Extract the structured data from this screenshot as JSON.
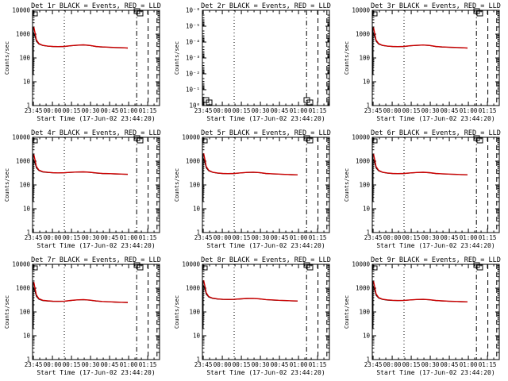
{
  "figure": {
    "background": "#ffffff",
    "axis_color": "#000000",
    "events_color": "#000000",
    "lld_color": "#cc0000"
  },
  "x_ticks": [
    "23:45",
    "00:00",
    "00:15",
    "00:30",
    "00:45",
    "01:00",
    "01:15"
  ],
  "chart_data": [
    {
      "type": "line",
      "title": "Det 1r BLACK = Events, RED = LLD",
      "ylabel": "Counts/sec",
      "xlabel": "Start Time (17-Jun-02 23:44:20)",
      "yscale": "log",
      "ylim": [
        1,
        10000
      ],
      "yticks": [
        "1",
        "10",
        "100",
        "1000",
        "10000"
      ],
      "xlim_minutes": [
        0,
        100
      ],
      "marker_minutes": [
        25,
        82,
        91,
        98
      ],
      "series": [
        {
          "name": "Events",
          "minutes": [
            0.6,
            1,
            2,
            3,
            5,
            8,
            12,
            16,
            20,
            25,
            30,
            35,
            40,
            45,
            50,
            55,
            60,
            65,
            70,
            75
          ],
          "values": [
            900,
            1100,
            800,
            500,
            380,
            330,
            310,
            300,
            295,
            300,
            320,
            340,
            350,
            330,
            300,
            285,
            280,
            270,
            265,
            260
          ]
        },
        {
          "name": "LLD",
          "minutes": [
            0.6,
            1,
            2,
            3,
            5,
            8,
            12,
            16,
            20,
            25,
            30,
            35,
            40,
            45,
            50,
            55,
            60,
            65,
            70,
            75
          ],
          "values": [
            1600,
            2000,
            1100,
            580,
            400,
            340,
            315,
            305,
            300,
            305,
            325,
            345,
            355,
            335,
            305,
            290,
            285,
            275,
            270,
            262
          ]
        }
      ],
      "annotations": [
        {
          "label": "box",
          "at": "top-right near 01:05"
        }
      ]
    },
    {
      "type": "line",
      "title": "Det 2r BLACK = Events, RED = LLD",
      "ylabel": "Counts/sec",
      "xlabel": "Start Time (17-Jun-02 23:44:20)",
      "yscale": "log",
      "ylim": [
        1,
        1e-06
      ],
      "yticks": [
        "10⁰",
        "10⁻¹",
        "10⁻²",
        "10⁻³",
        "10⁻⁴",
        "10⁻⁵",
        "10⁻⁶"
      ],
      "xlim_minutes": [
        0,
        100
      ],
      "marker_minutes": [
        25,
        82,
        91,
        98
      ],
      "series": [
        {
          "name": "Events",
          "minutes": [],
          "values": []
        },
        {
          "name": "LLD",
          "minutes": [],
          "values": []
        }
      ],
      "annotations": [
        {
          "label": "box",
          "at": "bottom-left"
        },
        {
          "label": "box",
          "at": "bottom-right near 01:05"
        }
      ]
    },
    {
      "type": "line",
      "title": "Det 3r BLACK = Events, RED = LLD",
      "ylabel": "Counts/sec",
      "xlabel": "Start Time (17-Jun-02 23:44:20)",
      "yscale": "log",
      "ylim": [
        1,
        10000
      ],
      "yticks": [
        "1",
        "10",
        "100",
        "1000",
        "10000"
      ],
      "xlim_minutes": [
        0,
        100
      ],
      "marker_minutes": [
        25,
        82,
        91,
        98
      ],
      "series": [
        {
          "name": "Events",
          "minutes": [
            0.6,
            1,
            2,
            3,
            5,
            8,
            12,
            16,
            20,
            25,
            30,
            35,
            40,
            45,
            50,
            55,
            60,
            65,
            70,
            75
          ],
          "values": [
            900,
            1100,
            780,
            500,
            380,
            330,
            310,
            300,
            295,
            300,
            320,
            335,
            345,
            330,
            300,
            285,
            280,
            272,
            266,
            260
          ]
        },
        {
          "name": "LLD",
          "minutes": [
            0.6,
            1,
            2,
            3,
            5,
            8,
            12,
            16,
            20,
            25,
            30,
            35,
            40,
            45,
            50,
            55,
            60,
            65,
            70,
            75
          ],
          "values": [
            1500,
            1900,
            1000,
            560,
            400,
            340,
            315,
            305,
            300,
            305,
            325,
            340,
            350,
            335,
            305,
            290,
            285,
            277,
            270,
            262
          ]
        }
      ],
      "annotations": [
        {
          "label": "box",
          "at": "top-right near 01:05"
        }
      ]
    },
    {
      "type": "line",
      "title": "Det 4r BLACK = Events, RED = LLD",
      "ylabel": "Counts/sec",
      "xlabel": "Start Time (17-Jun-02 23:44:20)",
      "yscale": "log",
      "ylim": [
        1,
        10000
      ],
      "yticks": [
        "1",
        "10",
        "100",
        "1000",
        "10000"
      ],
      "xlim_minutes": [
        0,
        100
      ],
      "marker_minutes": [
        25,
        82,
        91,
        98
      ],
      "series": [
        {
          "name": "Events",
          "minutes": [
            0.6,
            1,
            2,
            3,
            5,
            8,
            12,
            16,
            20,
            25,
            30,
            35,
            40,
            45,
            50,
            55,
            60,
            65,
            70,
            75
          ],
          "values": [
            900,
            1100,
            800,
            520,
            400,
            350,
            330,
            320,
            318,
            320,
            335,
            345,
            350,
            338,
            315,
            300,
            295,
            288,
            282,
            278
          ]
        },
        {
          "name": "LLD",
          "minutes": [
            0.6,
            1,
            2,
            3,
            5,
            8,
            12,
            16,
            20,
            25,
            30,
            35,
            40,
            45,
            50,
            55,
            60,
            65,
            70,
            75
          ],
          "values": [
            1500,
            1900,
            1100,
            600,
            420,
            360,
            338,
            325,
            322,
            325,
            340,
            350,
            355,
            342,
            320,
            305,
            300,
            292,
            286,
            280
          ]
        }
      ],
      "annotations": [
        {
          "label": "box",
          "at": "top-right near 01:05"
        }
      ]
    },
    {
      "type": "line",
      "title": "Det 5r BLACK = Events, RED = LLD",
      "ylabel": "Counts/sec",
      "xlabel": "Start Time (17-Jun-02 23:44:20)",
      "yscale": "log",
      "ylim": [
        1,
        10000
      ],
      "yticks": [
        "1",
        "10",
        "100",
        "1000",
        "10000"
      ],
      "xlim_minutes": [
        0,
        100
      ],
      "marker_minutes": [
        25,
        82,
        91,
        98
      ],
      "series": [
        {
          "name": "Events",
          "minutes": [
            0.6,
            1,
            2,
            3,
            5,
            8,
            12,
            16,
            20,
            25,
            30,
            35,
            40,
            45,
            50,
            55,
            60,
            65,
            70,
            75
          ],
          "values": [
            1000,
            1300,
            850,
            520,
            390,
            335,
            310,
            300,
            295,
            300,
            318,
            332,
            340,
            325,
            300,
            290,
            282,
            275,
            268,
            262
          ]
        },
        {
          "name": "LLD",
          "minutes": [
            0.6,
            1,
            2,
            3,
            5,
            8,
            12,
            16,
            20,
            25,
            30,
            35,
            40,
            45,
            50,
            55,
            60,
            65,
            70,
            75
          ],
          "values": [
            1700,
            2100,
            1150,
            600,
            410,
            345,
            318,
            305,
            300,
            305,
            322,
            336,
            345,
            330,
            305,
            294,
            286,
            278,
            272,
            265
          ]
        }
      ],
      "annotations": [
        {
          "label": "box",
          "at": "top-right near 01:05"
        }
      ]
    },
    {
      "type": "line",
      "title": "Det 6r BLACK = Events, RED = LLD",
      "ylabel": "Counts/sec",
      "xlabel": "Start Time (17-Jun-02 23:44:20)",
      "yscale": "log",
      "ylim": [
        1,
        10000
      ],
      "yticks": [
        "1",
        "10",
        "100",
        "1000",
        "10000"
      ],
      "xlim_minutes": [
        0,
        100
      ],
      "marker_minutes": [
        25,
        82,
        91,
        98
      ],
      "series": [
        {
          "name": "Events",
          "minutes": [
            0.6,
            1,
            2,
            3,
            5,
            8,
            12,
            16,
            20,
            25,
            30,
            35,
            40,
            45,
            50,
            55,
            60,
            65,
            70,
            75
          ],
          "values": [
            950,
            1200,
            820,
            510,
            390,
            335,
            310,
            300,
            296,
            300,
            316,
            330,
            338,
            324,
            300,
            290,
            282,
            276,
            270,
            265
          ]
        },
        {
          "name": "LLD",
          "minutes": [
            0.6,
            1,
            2,
            3,
            5,
            8,
            12,
            16,
            20,
            25,
            30,
            35,
            40,
            45,
            50,
            55,
            60,
            65,
            70,
            75
          ],
          "values": [
            1600,
            2000,
            1100,
            590,
            410,
            345,
            318,
            305,
            300,
            305,
            320,
            334,
            342,
            328,
            305,
            294,
            286,
            280,
            274,
            268
          ]
        }
      ],
      "annotations": [
        {
          "label": "box",
          "at": "top-right near 01:05"
        }
      ]
    },
    {
      "type": "line",
      "title": "Det 7r BLACK = Events, RED = LLD",
      "ylabel": "Counts/sec",
      "xlabel": "Start Time (17-Jun-02 23:44:20)",
      "yscale": "log",
      "ylim": [
        1,
        10000
      ],
      "yticks": [
        "1",
        "10",
        "100",
        "1000",
        "10000"
      ],
      "xlim_minutes": [
        0,
        100
      ],
      "marker_minutes": [
        25,
        82,
        91,
        98
      ],
      "series": [
        {
          "name": "Events",
          "minutes": [
            0.6,
            1,
            2,
            3,
            5,
            8,
            12,
            16,
            20,
            25,
            30,
            35,
            40,
            45,
            50,
            55,
            60,
            65,
            70,
            75
          ],
          "values": [
            850,
            1000,
            700,
            450,
            340,
            300,
            285,
            278,
            275,
            280,
            300,
            318,
            325,
            310,
            285,
            272,
            265,
            258,
            252,
            248
          ]
        },
        {
          "name": "LLD",
          "minutes": [
            0.6,
            1,
            2,
            3,
            5,
            8,
            12,
            16,
            20,
            25,
            30,
            35,
            40,
            45,
            50,
            55,
            60,
            65,
            70,
            75
          ],
          "values": [
            1400,
            1800,
            950,
            520,
            360,
            310,
            292,
            283,
            280,
            285,
            305,
            322,
            330,
            315,
            290,
            276,
            268,
            262,
            256,
            252
          ]
        }
      ],
      "annotations": [
        {
          "label": "box",
          "at": "top-right near 01:05"
        }
      ]
    },
    {
      "type": "line",
      "title": "Det 8r BLACK = Events, RED = LLD",
      "ylabel": "Counts/sec",
      "xlabel": "Start Time (17-Jun-02 23:44:20)",
      "yscale": "log",
      "ylim": [
        1,
        10000
      ],
      "yticks": [
        "1",
        "10",
        "100",
        "1000",
        "10000"
      ],
      "xlim_minutes": [
        0,
        100
      ],
      "marker_minutes": [
        25,
        82,
        91,
        98
      ],
      "series": [
        {
          "name": "Events",
          "minutes": [
            0.6,
            1,
            2,
            3,
            5,
            8,
            12,
            16,
            20,
            25,
            30,
            35,
            40,
            45,
            50,
            55,
            60,
            65,
            70,
            75
          ],
          "values": [
            1000,
            1300,
            900,
            560,
            420,
            370,
            345,
            335,
            330,
            335,
            350,
            362,
            368,
            352,
            328,
            315,
            305,
            298,
            290,
            285
          ]
        },
        {
          "name": "LLD",
          "minutes": [
            0.6,
            1,
            2,
            3,
            5,
            8,
            12,
            16,
            20,
            25,
            30,
            35,
            40,
            45,
            50,
            55,
            60,
            65,
            70,
            75
          ],
          "values": [
            1700,
            2100,
            1200,
            640,
            440,
            380,
            352,
            340,
            335,
            340,
            355,
            368,
            372,
            356,
            332,
            320,
            310,
            302,
            294,
            288
          ]
        }
      ],
      "annotations": [
        {
          "label": "box",
          "at": "top-right near 01:05"
        }
      ]
    },
    {
      "type": "line",
      "title": "Det 9r BLACK = Events, RED = LLD",
      "ylabel": "Counts/sec",
      "xlabel": "Start Time (17-Jun-02 23:44:20)",
      "yscale": "log",
      "ylim": [
        1,
        10000
      ],
      "yticks": [
        "1",
        "10",
        "100",
        "1000",
        "10000"
      ],
      "xlim_minutes": [
        0,
        100
      ],
      "marker_minutes": [
        25,
        82,
        91,
        98
      ],
      "series": [
        {
          "name": "Events",
          "minutes": [
            0.6,
            1,
            2,
            3,
            5,
            8,
            12,
            16,
            20,
            25,
            30,
            35,
            40,
            45,
            50,
            55,
            60,
            65,
            70,
            75
          ],
          "values": [
            900,
            1150,
            800,
            500,
            380,
            335,
            312,
            302,
            298,
            302,
            318,
            330,
            336,
            322,
            300,
            288,
            280,
            274,
            268,
            262
          ]
        },
        {
          "name": "LLD",
          "minutes": [
            0.6,
            1,
            2,
            3,
            5,
            8,
            12,
            16,
            20,
            25,
            30,
            35,
            40,
            45,
            50,
            55,
            60,
            65,
            70,
            75
          ],
          "values": [
            1500,
            1950,
            1050,
            570,
            400,
            345,
            320,
            308,
            302,
            306,
            322,
            334,
            340,
            326,
            304,
            292,
            284,
            278,
            272,
            266
          ]
        }
      ],
      "annotations": [
        {
          "label": "box",
          "at": "top-right near 01:05"
        }
      ]
    }
  ]
}
